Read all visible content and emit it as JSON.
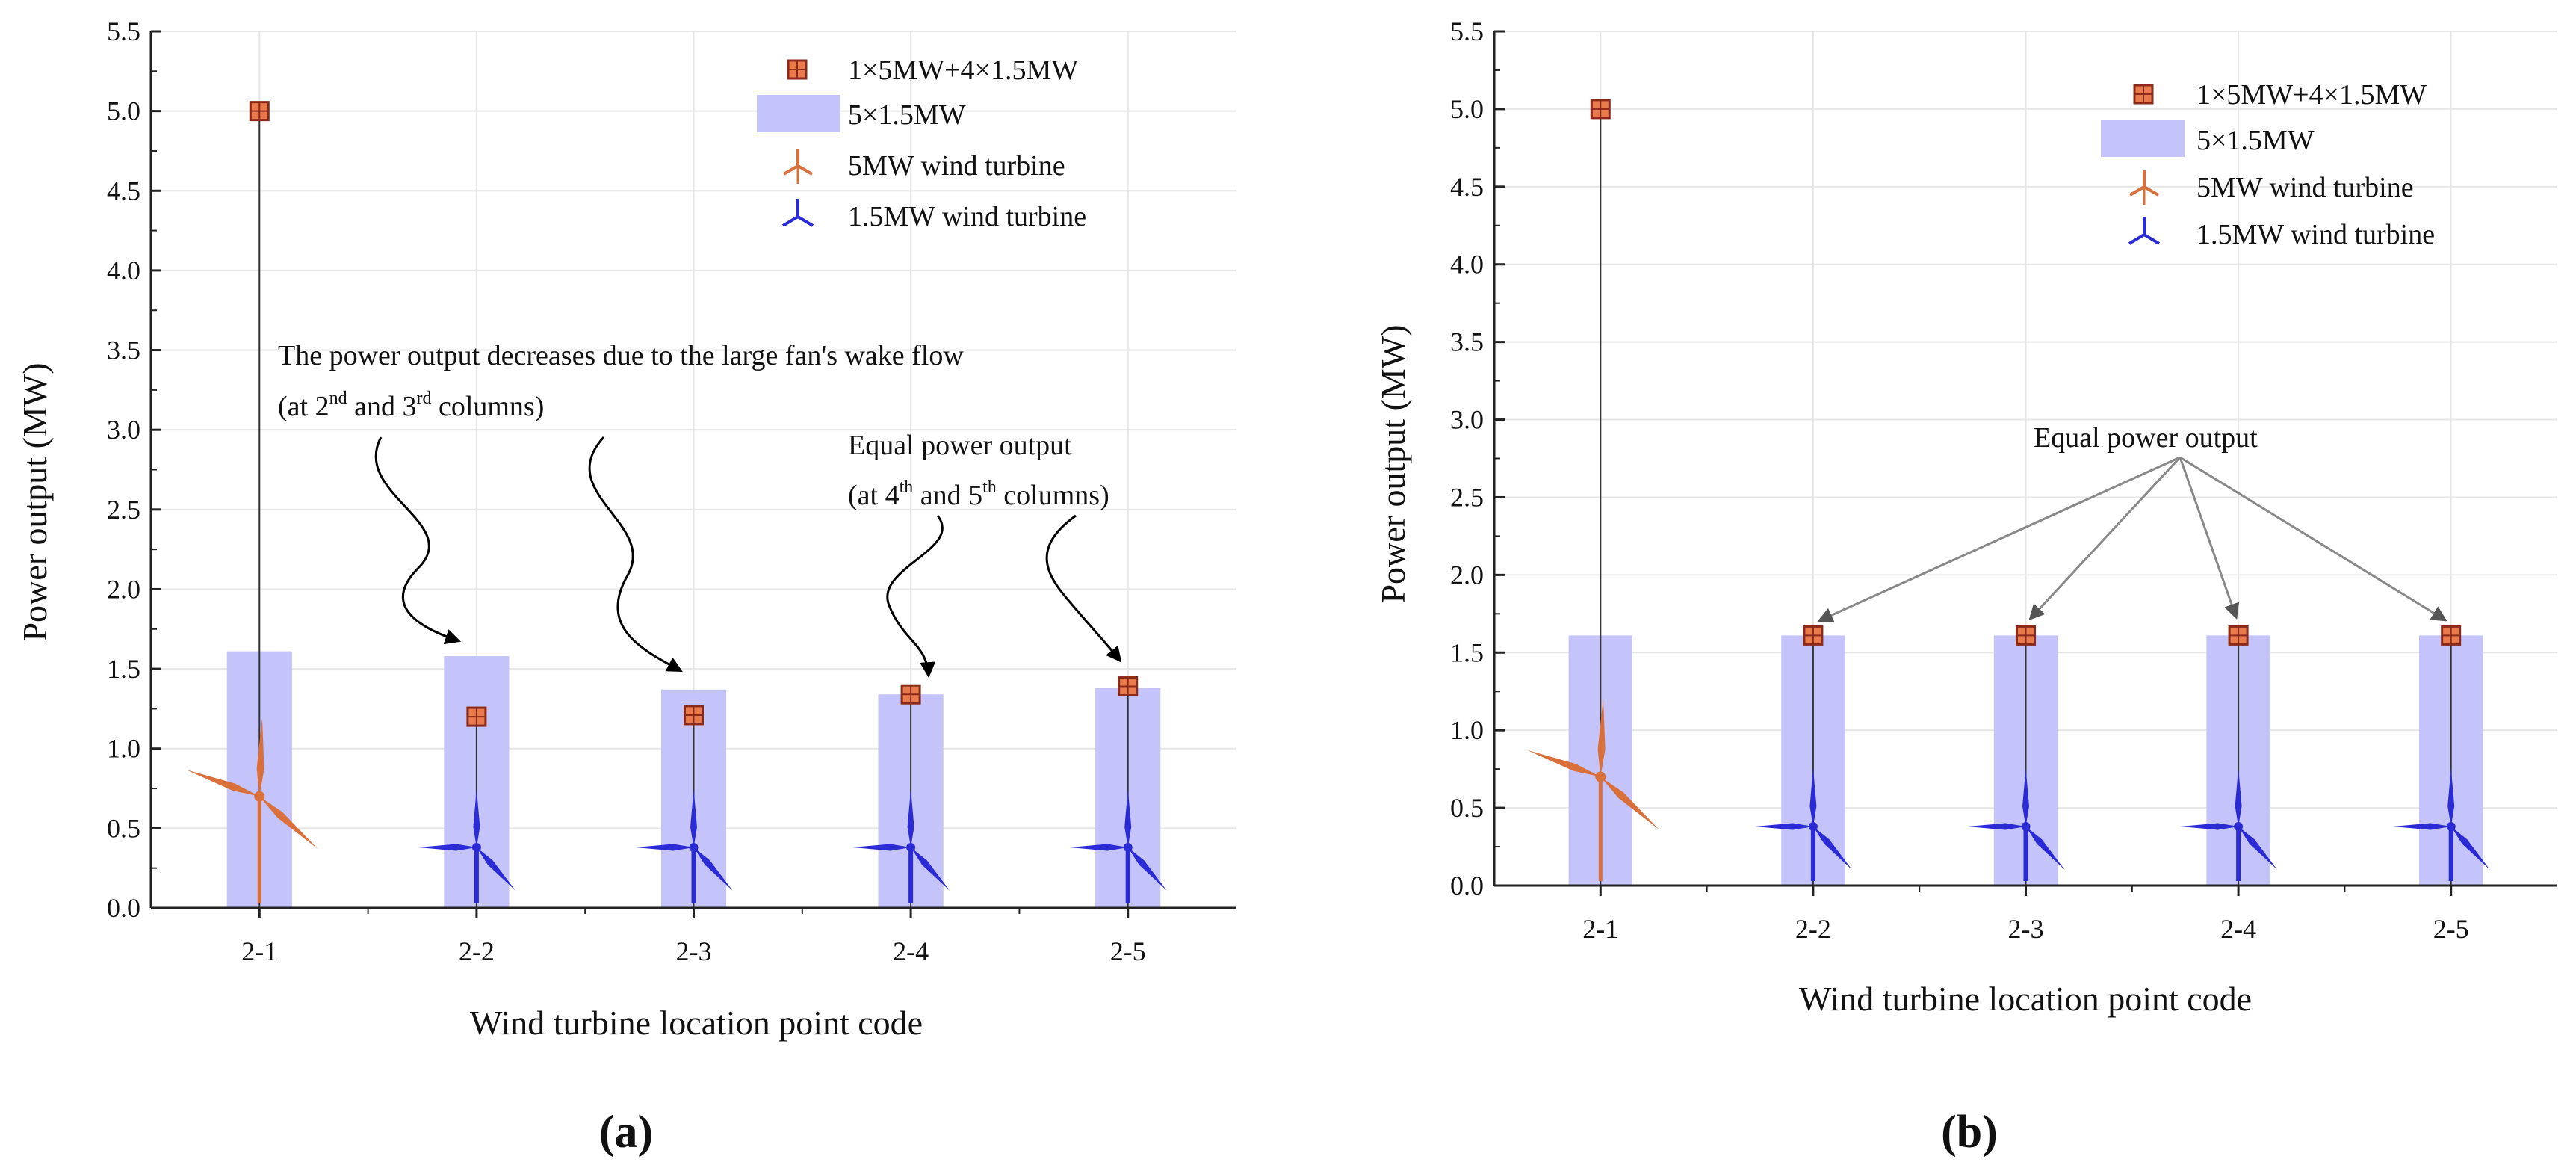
{
  "colors": {
    "bar": "#c4c4fb",
    "marker_fill": "#e87a4c",
    "marker_edge": "#8b2a1a",
    "turbine_5mw": "#d9703c",
    "turbine_15mw": "#2b2bd6",
    "grid": "#e6e6e6",
    "axis": "#222222",
    "arrow_curly": "#000000",
    "arrow_straight": "#888888"
  },
  "chart_data": [
    {
      "type": "bar",
      "panel": "(a)",
      "categories": [
        "2-1",
        "2-2",
        "2-3",
        "2-4",
        "2-5"
      ],
      "series": [
        {
          "name": "5×1.5MW",
          "kind": "bar",
          "values": [
            1.61,
            1.58,
            1.37,
            1.34,
            1.38
          ]
        },
        {
          "name": "1×5MW+4×1.5MW",
          "kind": "marker",
          "values": [
            5.0,
            1.2,
            1.21,
            1.34,
            1.39
          ]
        }
      ],
      "turbines": [
        "5MW",
        "1.5MW",
        "1.5MW",
        "1.5MW",
        "1.5MW"
      ],
      "legend": [
        "1×5MW+4×1.5MW",
        "5×1.5MW",
        "5MW wind turbine",
        "1.5MW wind turbine"
      ],
      "xlabel": "Wind turbine location point code",
      "ylabel": "Power output (MW)",
      "ylim": [
        0,
        5.5
      ],
      "yticks": [
        "0.0",
        "0.5",
        "1.0",
        "1.5",
        "2.0",
        "2.5",
        "3.0",
        "3.5",
        "4.0",
        "4.5",
        "5.0",
        "5.5"
      ],
      "annotations": {
        "wake_line1": "The power output decreases due to the large fan's wake flow",
        "wake_line2_a": "(at 2",
        "wake_sup1": "nd",
        "wake_line2_b": " and 3",
        "wake_sup2": "rd",
        "wake_line2_c": " columns)",
        "equal_line1": "Equal power output",
        "equal_line2_a": "(at 4",
        "equal_sup1": "th",
        "equal_line2_b": " and 5",
        "equal_sup2": "th",
        "equal_line2_c": " columns)"
      }
    },
    {
      "type": "bar",
      "panel": "(b)",
      "categories": [
        "2-1",
        "2-2",
        "2-3",
        "2-4",
        "2-5"
      ],
      "series": [
        {
          "name": "5×1.5MW",
          "kind": "bar",
          "values": [
            1.61,
            1.61,
            1.61,
            1.61,
            1.61
          ]
        },
        {
          "name": "1×5MW+4×1.5MW",
          "kind": "marker",
          "values": [
            5.0,
            1.61,
            1.61,
            1.61,
            1.61
          ]
        }
      ],
      "turbines": [
        "5MW",
        "1.5MW",
        "1.5MW",
        "1.5MW",
        "1.5MW"
      ],
      "legend": [
        "1×5MW+4×1.5MW",
        "5×1.5MW",
        "5MW wind turbine",
        "1.5MW wind turbine"
      ],
      "xlabel": "Wind turbine location point code",
      "ylabel": "Power output (MW)",
      "ylim": [
        0,
        5.5
      ],
      "yticks": [
        "0.0",
        "0.5",
        "1.0",
        "1.5",
        "2.0",
        "2.5",
        "3.0",
        "3.5",
        "4.0",
        "4.5",
        "5.0",
        "5.5"
      ],
      "annotations": {
        "equal_line1": "Equal power output"
      }
    }
  ]
}
